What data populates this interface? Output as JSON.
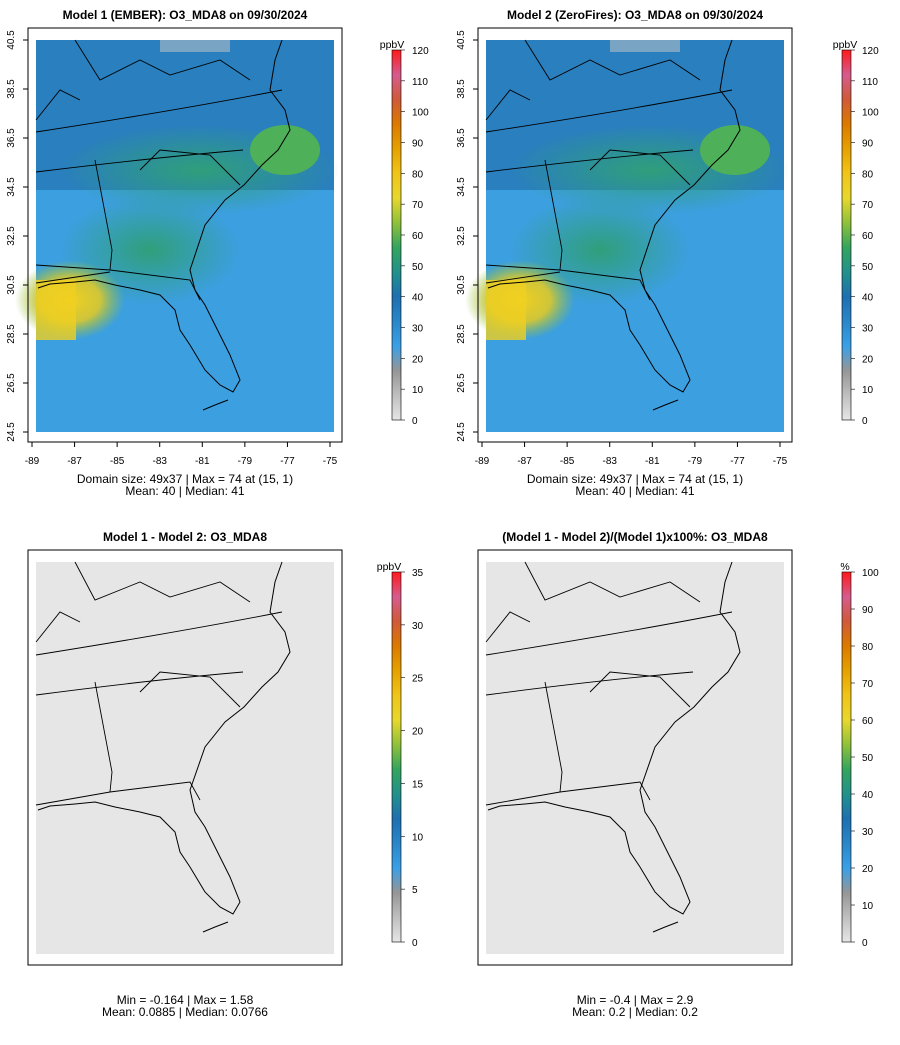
{
  "colorbar_colors": [
    "#E6E6E6",
    "#BFBFBF",
    "#969696",
    "#3AA0E6",
    "#2A86C8",
    "#1E6FB0",
    "#22918B",
    "#35A45E",
    "#8FC13B",
    "#E8D72E",
    "#F0C419",
    "#E5A100",
    "#DA7A00",
    "#CF5A3A",
    "#D55C8E",
    "#FF1A1A"
  ],
  "land_colors": {
    "difference": "#E6E6E6"
  },
  "panels": [
    {
      "title": "Model 1 (EMBER): O3_MDA8 on 09/30/2024",
      "stats1": "Domain size: 49x37 | Max = 74 at (15, 1)",
      "stats2": "Mean: 40 |  Median: 41",
      "unit": "ppbV",
      "colorbar_ticks": [
        "120",
        "110",
        "100",
        "90",
        "80",
        "70",
        "60",
        "50",
        "40",
        "30",
        "20",
        "10",
        "0"
      ],
      "x_ticks": [
        "-89",
        "-87",
        "-85",
        "-83",
        "-81",
        "-79",
        "-77",
        "-75"
      ],
      "y_ticks": [
        "40.5",
        "38.5",
        "36.5",
        "34.5",
        "32.5",
        "30.5",
        "28.5",
        "26.5",
        "24.5"
      ]
    },
    {
      "title": "Model 2 (ZeroFires): O3_MDA8 on 09/30/2024",
      "stats1": "Domain size: 49x37 | Max = 74 at (15, 1)",
      "stats2": "Mean: 40 |  Median: 41",
      "unit": "ppbV",
      "colorbar_ticks": [
        "120",
        "110",
        "100",
        "90",
        "80",
        "70",
        "60",
        "50",
        "40",
        "30",
        "20",
        "10",
        "0"
      ],
      "x_ticks": [
        "-89",
        "-87",
        "-85",
        "-83",
        "-81",
        "-79",
        "-77",
        "-75"
      ],
      "y_ticks": [
        "40.5",
        "38.5",
        "36.5",
        "34.5",
        "32.5",
        "30.5",
        "28.5",
        "26.5",
        "24.5"
      ]
    },
    {
      "title": "Model 1 - Model 2: O3_MDA8",
      "stats1": "Min = -0.164 | Max = 1.58",
      "stats2": "Mean: 0.0885 |  Median: 0.0766",
      "unit": "ppbV",
      "colorbar_ticks": [
        "35",
        "30",
        "25",
        "20",
        "15",
        "10",
        "5",
        "0"
      ]
    },
    {
      "title": "(Model 1 - Model 2)/(Model 1)x100%: O3_MDA8",
      "stats1": "Min = -0.4 | Max = 2.9",
      "stats2": "Mean: 0.2 |  Median: 0.2",
      "unit": "%",
      "colorbar_ticks": [
        "100",
        "90",
        "80",
        "70",
        "60",
        "50",
        "40",
        "30",
        "20",
        "10",
        "0"
      ]
    }
  ]
}
